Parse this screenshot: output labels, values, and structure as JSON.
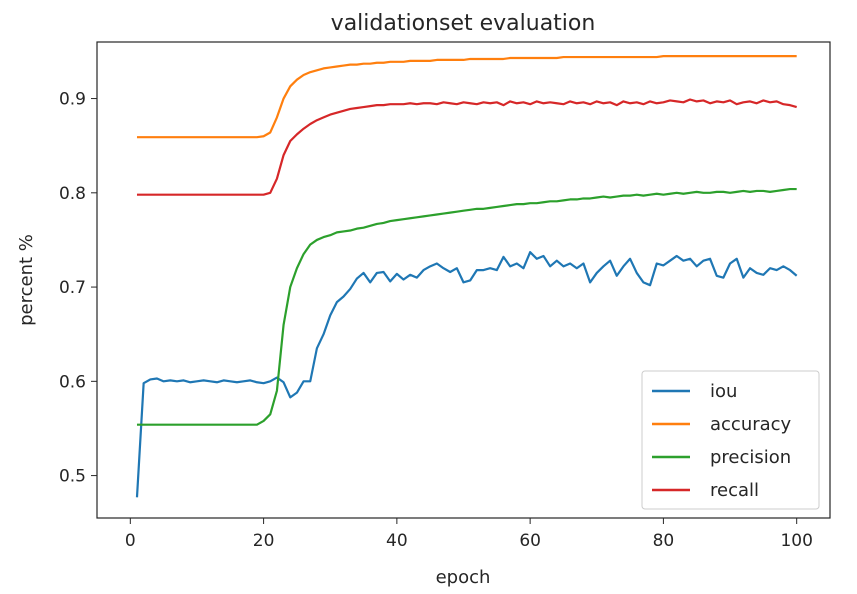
{
  "chart_data": {
    "type": "line",
    "title": "validationset evaluation",
    "xlabel": "epoch",
    "ylabel": "percent %",
    "xlim": [
      -5,
      105
    ],
    "ylim": [
      0.455,
      0.96
    ],
    "xticks": [
      0,
      20,
      40,
      60,
      80,
      100
    ],
    "yticks": [
      0.5,
      0.6,
      0.7,
      0.8,
      0.9
    ],
    "ytick_labels": [
      "0.5",
      "0.6",
      "0.7",
      "0.8",
      "0.9"
    ],
    "grid": false,
    "legend_position": "lower-right",
    "x": [
      1,
      2,
      3,
      4,
      5,
      6,
      7,
      8,
      9,
      10,
      11,
      12,
      13,
      14,
      15,
      16,
      17,
      18,
      19,
      20,
      21,
      22,
      23,
      24,
      25,
      26,
      27,
      28,
      29,
      30,
      31,
      32,
      33,
      34,
      35,
      36,
      37,
      38,
      39,
      40,
      41,
      42,
      43,
      44,
      45,
      46,
      47,
      48,
      49,
      50,
      51,
      52,
      53,
      54,
      55,
      56,
      57,
      58,
      59,
      60,
      61,
      62,
      63,
      64,
      65,
      66,
      67,
      68,
      69,
      70,
      71,
      72,
      73,
      74,
      75,
      76,
      77,
      78,
      79,
      80,
      81,
      82,
      83,
      84,
      85,
      86,
      87,
      88,
      89,
      90,
      91,
      92,
      93,
      94,
      95,
      96,
      97,
      98,
      99,
      100
    ],
    "series": [
      {
        "name": "iou",
        "color": "#1f77b4",
        "values": [
          0.477,
          0.598,
          0.602,
          0.603,
          0.6,
          0.601,
          0.6,
          0.601,
          0.599,
          0.6,
          0.601,
          0.6,
          0.599,
          0.601,
          0.6,
          0.599,
          0.6,
          0.601,
          0.599,
          0.598,
          0.6,
          0.604,
          0.599,
          0.583,
          0.588,
          0.6,
          0.6,
          0.635,
          0.65,
          0.67,
          0.684,
          0.69,
          0.698,
          0.709,
          0.715,
          0.705,
          0.715,
          0.716,
          0.706,
          0.714,
          0.708,
          0.713,
          0.71,
          0.718,
          0.722,
          0.725,
          0.72,
          0.716,
          0.72,
          0.705,
          0.707,
          0.718,
          0.718,
          0.72,
          0.718,
          0.732,
          0.722,
          0.725,
          0.72,
          0.737,
          0.73,
          0.733,
          0.722,
          0.728,
          0.722,
          0.725,
          0.72,
          0.725,
          0.705,
          0.715,
          0.722,
          0.728,
          0.712,
          0.722,
          0.73,
          0.715,
          0.705,
          0.702,
          0.725,
          0.723,
          0.728,
          0.733,
          0.728,
          0.73,
          0.722,
          0.728,
          0.73,
          0.712,
          0.71,
          0.725,
          0.73,
          0.71,
          0.72,
          0.715,
          0.713,
          0.72,
          0.718,
          0.722,
          0.718,
          0.712
        ]
      },
      {
        "name": "accuracy",
        "color": "#ff7f0e",
        "values": [
          0.859,
          0.859,
          0.859,
          0.859,
          0.859,
          0.859,
          0.859,
          0.859,
          0.859,
          0.859,
          0.859,
          0.859,
          0.859,
          0.859,
          0.859,
          0.859,
          0.859,
          0.859,
          0.859,
          0.86,
          0.864,
          0.88,
          0.9,
          0.913,
          0.92,
          0.925,
          0.928,
          0.93,
          0.932,
          0.933,
          0.934,
          0.935,
          0.936,
          0.936,
          0.937,
          0.937,
          0.938,
          0.938,
          0.939,
          0.939,
          0.939,
          0.94,
          0.94,
          0.94,
          0.94,
          0.941,
          0.941,
          0.941,
          0.941,
          0.941,
          0.942,
          0.942,
          0.942,
          0.942,
          0.942,
          0.942,
          0.943,
          0.943,
          0.943,
          0.943,
          0.943,
          0.943,
          0.943,
          0.943,
          0.944,
          0.944,
          0.944,
          0.944,
          0.944,
          0.944,
          0.944,
          0.944,
          0.944,
          0.944,
          0.944,
          0.944,
          0.944,
          0.944,
          0.944,
          0.945,
          0.945,
          0.945,
          0.945,
          0.945,
          0.945,
          0.945,
          0.945,
          0.945,
          0.945,
          0.945,
          0.945,
          0.945,
          0.945,
          0.945,
          0.945,
          0.945,
          0.945,
          0.945,
          0.945,
          0.945
        ]
      },
      {
        "name": "precision",
        "color": "#2ca02c",
        "values": [
          0.554,
          0.554,
          0.554,
          0.554,
          0.554,
          0.554,
          0.554,
          0.554,
          0.554,
          0.554,
          0.554,
          0.554,
          0.554,
          0.554,
          0.554,
          0.554,
          0.554,
          0.554,
          0.554,
          0.558,
          0.565,
          0.59,
          0.66,
          0.7,
          0.72,
          0.735,
          0.745,
          0.75,
          0.753,
          0.755,
          0.758,
          0.759,
          0.76,
          0.762,
          0.763,
          0.765,
          0.767,
          0.768,
          0.77,
          0.771,
          0.772,
          0.773,
          0.774,
          0.775,
          0.776,
          0.777,
          0.778,
          0.779,
          0.78,
          0.781,
          0.782,
          0.783,
          0.783,
          0.784,
          0.785,
          0.786,
          0.787,
          0.788,
          0.788,
          0.789,
          0.789,
          0.79,
          0.791,
          0.791,
          0.792,
          0.793,
          0.793,
          0.794,
          0.794,
          0.795,
          0.796,
          0.795,
          0.796,
          0.797,
          0.797,
          0.798,
          0.797,
          0.798,
          0.799,
          0.798,
          0.799,
          0.8,
          0.799,
          0.8,
          0.801,
          0.8,
          0.8,
          0.801,
          0.801,
          0.8,
          0.801,
          0.802,
          0.801,
          0.802,
          0.802,
          0.801,
          0.802,
          0.803,
          0.804,
          0.804
        ]
      },
      {
        "name": "recall",
        "color": "#d62728",
        "values": [
          0.798,
          0.798,
          0.798,
          0.798,
          0.798,
          0.798,
          0.798,
          0.798,
          0.798,
          0.798,
          0.798,
          0.798,
          0.798,
          0.798,
          0.798,
          0.798,
          0.798,
          0.798,
          0.798,
          0.798,
          0.8,
          0.815,
          0.84,
          0.855,
          0.862,
          0.868,
          0.873,
          0.877,
          0.88,
          0.883,
          0.885,
          0.887,
          0.889,
          0.89,
          0.891,
          0.892,
          0.893,
          0.893,
          0.894,
          0.894,
          0.894,
          0.895,
          0.894,
          0.895,
          0.895,
          0.894,
          0.896,
          0.895,
          0.894,
          0.896,
          0.895,
          0.894,
          0.896,
          0.895,
          0.896,
          0.893,
          0.897,
          0.895,
          0.896,
          0.894,
          0.897,
          0.895,
          0.896,
          0.895,
          0.894,
          0.897,
          0.895,
          0.896,
          0.894,
          0.897,
          0.895,
          0.896,
          0.893,
          0.897,
          0.895,
          0.896,
          0.894,
          0.897,
          0.895,
          0.896,
          0.898,
          0.897,
          0.896,
          0.899,
          0.897,
          0.898,
          0.895,
          0.897,
          0.896,
          0.898,
          0.894,
          0.896,
          0.897,
          0.895,
          0.898,
          0.896,
          0.897,
          0.894,
          0.893,
          0.891
        ]
      }
    ]
  }
}
